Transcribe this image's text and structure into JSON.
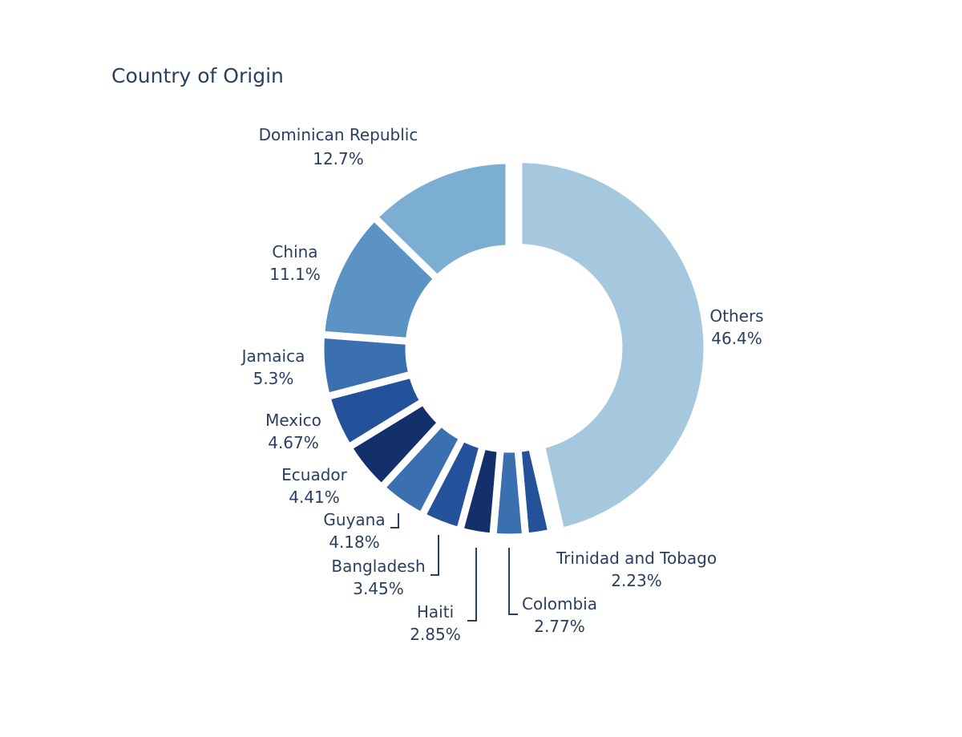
{
  "chart_data": {
    "type": "pie",
    "title": "Country of Origin",
    "hole": true,
    "legend": "none",
    "slices": [
      {
        "label": "Others",
        "value": 46.4,
        "text": "46.4%",
        "color": "#a6c8df"
      },
      {
        "label": "Trinidad and Tobago",
        "value": 2.23,
        "text": "2.23%",
        "color": "#23519a"
      },
      {
        "label": "Colombia",
        "value": 2.77,
        "text": "2.77%",
        "color": "#3a6fb0"
      },
      {
        "label": "Haiti",
        "value": 2.85,
        "text": "2.85%",
        "color": "#14306a"
      },
      {
        "label": "Bangladesh",
        "value": 3.45,
        "text": "3.45%",
        "color": "#23519a"
      },
      {
        "label": "Guyana",
        "value": 4.18,
        "text": "4.18%",
        "color": "#3a6fb0"
      },
      {
        "label": "Ecuador",
        "value": 4.41,
        "text": "4.41%",
        "color": "#14306a"
      },
      {
        "label": "Mexico",
        "value": 4.67,
        "text": "4.67%",
        "color": "#23519a"
      },
      {
        "label": "Jamaica",
        "value": 5.3,
        "text": "5.3%",
        "color": "#3a6fb0"
      },
      {
        "label": "China",
        "value": 11.1,
        "text": "11.1%",
        "color": "#5a93c4"
      },
      {
        "label": "Dominican Republic",
        "value": 12.7,
        "text": "12.7%",
        "color": "#7caed4"
      }
    ]
  }
}
